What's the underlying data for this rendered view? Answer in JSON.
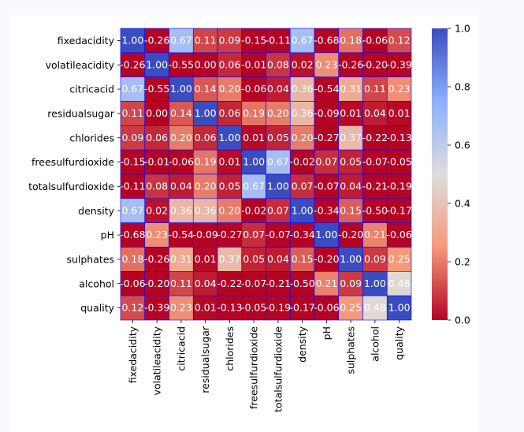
{
  "chart_data": {
    "type": "heatmap",
    "title": "",
    "xlabel": "",
    "ylabel": "",
    "labels": [
      "fixedacidity",
      "volatileacidity",
      "citricacid",
      "residualsugar",
      "chlorides",
      "freesulfurdioxide",
      "totalsulfurdioxide",
      "density",
      "pH",
      "sulphates",
      "alcohol",
      "quality"
    ],
    "values": [
      [
        1.0,
        -0.26,
        0.67,
        0.11,
        0.09,
        -0.15,
        -0.11,
        0.67,
        -0.68,
        0.18,
        -0.06,
        0.12
      ],
      [
        -0.26,
        1.0,
        -0.55,
        0.0,
        0.06,
        -0.01,
        0.08,
        0.02,
        0.23,
        -0.26,
        -0.2,
        -0.39
      ],
      [
        0.67,
        -0.55,
        1.0,
        0.14,
        0.2,
        -0.06,
        0.04,
        0.36,
        -0.54,
        0.31,
        0.11,
        0.23
      ],
      [
        0.11,
        0.0,
        0.14,
        1.0,
        0.06,
        0.19,
        0.2,
        0.36,
        -0.09,
        0.01,
        0.04,
        0.01
      ],
      [
        0.09,
        0.06,
        0.2,
        0.06,
        1.0,
        0.01,
        0.05,
        0.2,
        -0.27,
        0.37,
        -0.22,
        -0.13
      ],
      [
        -0.15,
        -0.01,
        -0.06,
        0.19,
        0.01,
        1.0,
        0.67,
        -0.02,
        0.07,
        0.05,
        -0.07,
        -0.05
      ],
      [
        -0.11,
        0.08,
        0.04,
        0.2,
        0.05,
        0.67,
        1.0,
        0.07,
        -0.07,
        0.04,
        -0.21,
        -0.19
      ],
      [
        0.67,
        0.02,
        0.36,
        0.36,
        0.2,
        -0.02,
        0.07,
        1.0,
        -0.34,
        0.15,
        -0.5,
        -0.17
      ],
      [
        -0.68,
        0.23,
        -0.54,
        -0.09,
        -0.27,
        0.07,
        -0.07,
        -0.34,
        1.0,
        -0.2,
        0.21,
        -0.06
      ],
      [
        0.18,
        -0.26,
        0.31,
        0.01,
        0.37,
        0.05,
        0.04,
        0.15,
        -0.2,
        1.0,
        0.09,
        0.25
      ],
      [
        -0.06,
        -0.2,
        0.11,
        0.04,
        -0.22,
        -0.07,
        -0.21,
        -0.5,
        0.21,
        0.09,
        1.0,
        0.48
      ],
      [
        0.12,
        -0.39,
        0.23,
        0.01,
        -0.13,
        -0.05,
        -0.19,
        -0.17,
        -0.06,
        0.25,
        0.48,
        1.0
      ]
    ],
    "value_format": "2 decimals",
    "colormap": "coolwarm_r",
    "vmin": 0.0,
    "vmax": 1.0,
    "colorbar_ticks": [
      "0.0",
      "0.2",
      "0.4",
      "0.6",
      "0.8",
      "1.0"
    ],
    "cell_border_color": "#0000ff"
  }
}
